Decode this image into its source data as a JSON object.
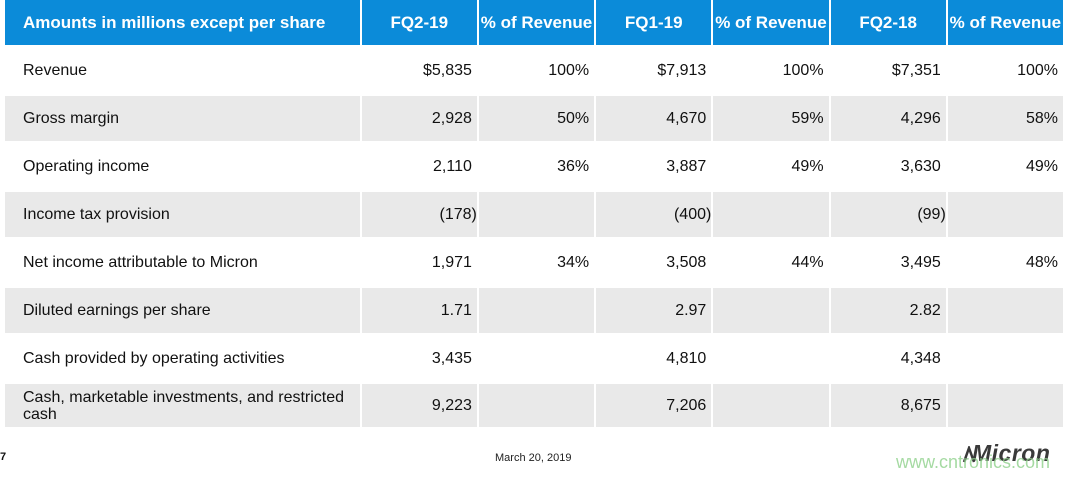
{
  "table": {
    "headers": [
      "Amounts in millions except per share",
      "FQ2-19",
      "% of Revenue",
      "FQ1-19",
      "% of Revenue",
      "FQ2-18",
      "% of Revenue"
    ],
    "rows": [
      {
        "label": "Revenue",
        "cells": [
          "$5,835",
          "100%",
          "$7,913",
          "100%",
          "$7,351",
          "100%"
        ]
      },
      {
        "label": "Gross margin",
        "cells": [
          "2,928",
          "50%",
          "4,670",
          "59%",
          "4,296",
          "58%"
        ]
      },
      {
        "label": "Operating income",
        "cells": [
          "2,110",
          "36%",
          "3,887",
          "49%",
          "3,630",
          "49%"
        ]
      },
      {
        "label": "Income tax provision",
        "cells": [
          "(178)",
          "",
          "(400)",
          "",
          "(99)",
          ""
        ]
      },
      {
        "label": "Net income attributable to Micron",
        "cells": [
          "1,971",
          "34%",
          "3,508",
          "44%",
          "3,495",
          "48%"
        ]
      },
      {
        "label": "Diluted earnings per share",
        "cells": [
          "1.71",
          "",
          "2.97",
          "",
          "2.82",
          ""
        ]
      },
      {
        "label": "Cash provided by operating activities",
        "cells": [
          "3,435",
          "",
          "4,810",
          "",
          "4,348",
          ""
        ]
      },
      {
        "label": "Cash, marketable investments, and restricted cash",
        "cells": [
          "9,223",
          "",
          "7,206",
          "",
          "8,675",
          ""
        ]
      }
    ]
  },
  "footer": {
    "page_number": "7",
    "date": "March 20, 2019",
    "logo": "Micron",
    "watermark": "www.cntronics.com"
  },
  "colors": {
    "header_bg": "#0b8bd9",
    "stripe_bg": "#e9e9e9"
  }
}
